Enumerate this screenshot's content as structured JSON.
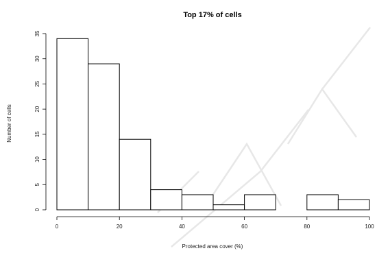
{
  "chart_data": {
    "type": "bar",
    "title": "Top 17% of cells",
    "xlabel": "Protected area cover (%)",
    "ylabel": "Number of cells",
    "bins": [
      {
        "from": 0,
        "to": 10,
        "count": 34
      },
      {
        "from": 10,
        "to": 20,
        "count": 29
      },
      {
        "from": 20,
        "to": 30,
        "count": 14
      },
      {
        "from": 30,
        "to": 40,
        "count": 4
      },
      {
        "from": 40,
        "to": 50,
        "count": 3
      },
      {
        "from": 50,
        "to": 60,
        "count": 1
      },
      {
        "from": 60,
        "to": 70,
        "count": 3
      },
      {
        "from": 70,
        "to": 80,
        "count": 0
      },
      {
        "from": 80,
        "to": 90,
        "count": 3
      },
      {
        "from": 90,
        "to": 100,
        "count": 2
      }
    ],
    "xlim": [
      0,
      100
    ],
    "ylim": [
      0,
      35
    ],
    "xticks": [
      0,
      20,
      40,
      60,
      80,
      100
    ],
    "yticks": [
      0,
      5,
      10,
      15,
      20,
      25,
      30,
      35
    ],
    "grid": false
  }
}
